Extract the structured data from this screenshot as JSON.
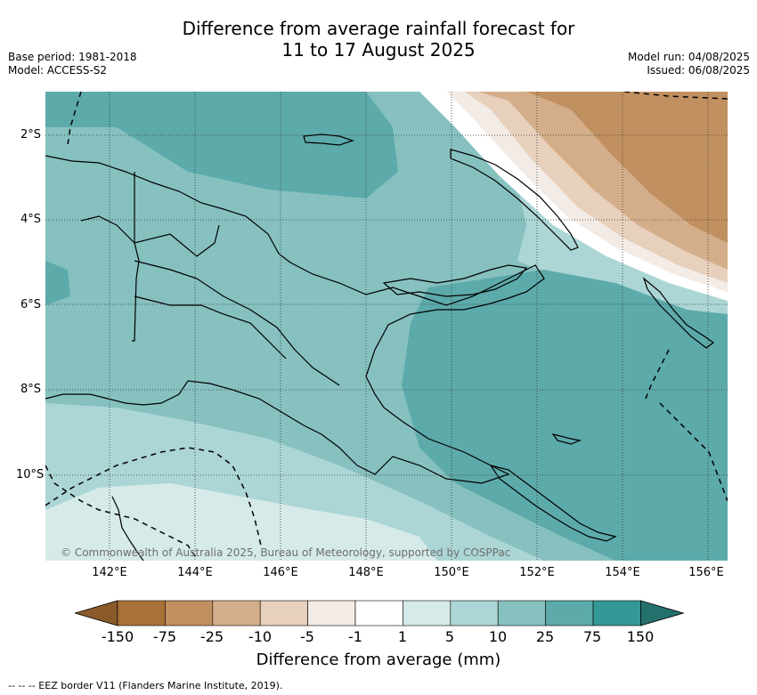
{
  "title_line1": "Difference from average rainfall forecast for",
  "title_line2": "11 to 17 August 2025",
  "base_period": "Base period: 1981-2018",
  "model": "Model: ACCESS-S2",
  "model_run": "Model run: 04/08/2025",
  "issued": "Issued: 06/08/2025",
  "credit": "© Commonwealth of Australia 2025, Bureau of Meteorology, supported by COSPPac",
  "latitudes": [
    "2°S",
    "4°S",
    "6°S",
    "8°S",
    "10°S"
  ],
  "longitudes": [
    "142°E",
    "144°E",
    "146°E",
    "148°E",
    "150°E",
    "152°E",
    "154°E",
    "156°E"
  ],
  "colorbar": {
    "label": "Difference from average (mm)",
    "ticks": [
      "-150",
      "-75",
      "-25",
      "-10",
      "-5",
      "-1",
      "1",
      "5",
      "10",
      "25",
      "75",
      "150"
    ],
    "colors": [
      "#8a5a2b",
      "#a97238",
      "#c19060",
      "#d4ae8a",
      "#e7d0bc",
      "#f3ece6",
      "#ffffff",
      "#d5eae9",
      "#acd6d5",
      "#86c1c0",
      "#5daaaa",
      "#349896",
      "#24706d"
    ]
  },
  "legend_footer": "--  --  -- EEZ border V11 (Flanders Marine Institute, 2019)."
}
